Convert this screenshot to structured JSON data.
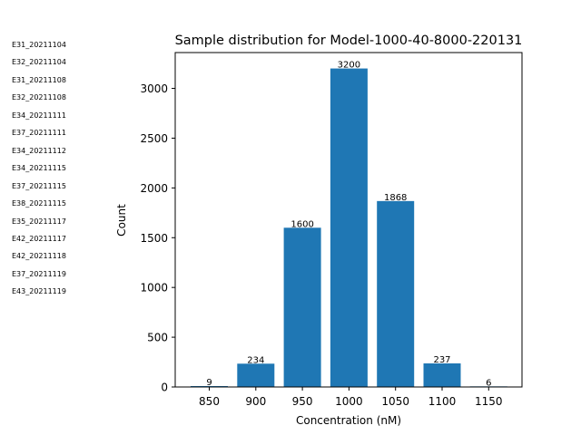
{
  "side_list": [
    "E31_20211104",
    "E32_20211104",
    "E31_20211108",
    "E32_20211108",
    "E34_20211111",
    "E37_20211111",
    "E34_20211112",
    "E34_20211115",
    "E37_20211115",
    "E38_20211115",
    "E35_20211117",
    "E42_20211117",
    "E42_20211118",
    "E37_20211119",
    "E43_20211119"
  ],
  "chart_data": {
    "type": "bar",
    "title": "Sample distribution for Model-1000-40-8000-220131",
    "xlabel": "Concentration (nM)",
    "ylabel": "Count",
    "categories": [
      "850",
      "900",
      "950",
      "1000",
      "1050",
      "1100",
      "1150"
    ],
    "values": [
      9,
      234,
      1600,
      3200,
      1868,
      237,
      6
    ],
    "data_labels": [
      "9",
      "234",
      "1600",
      "3200",
      "1868",
      "237",
      "6"
    ],
    "yticks": [
      "0",
      "500",
      "1000",
      "1500",
      "2000",
      "2500",
      "3000"
    ],
    "ylim": [
      0,
      3360
    ],
    "grid": false,
    "bar_color": "#1f77b4"
  }
}
